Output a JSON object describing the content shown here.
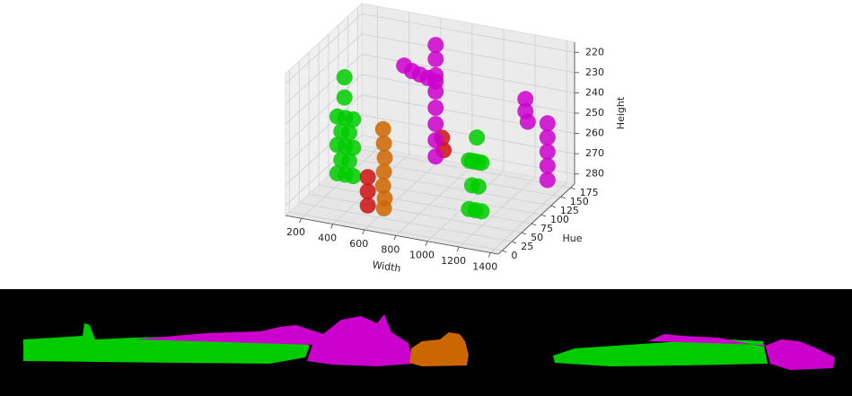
{
  "chart_data": {
    "type": "scatter3d",
    "xlabel": "Width",
    "ylabel": "Hue",
    "zlabel": "Height",
    "xlim": [
      100,
      1450
    ],
    "ylim": [
      -10,
      185
    ],
    "zlim": [
      285,
      215
    ],
    "xticks": [
      200,
      400,
      600,
      800,
      1000,
      1200,
      1400
    ],
    "yticks": [
      0,
      25,
      50,
      75,
      100,
      125,
      150,
      175
    ],
    "zticks": [
      220,
      230,
      240,
      250,
      260,
      270,
      280
    ],
    "grid": true,
    "series": [
      {
        "color": "#00cc00",
        "x": [
          330,
          330,
          330,
          355,
          355,
          380,
          380,
          380,
          405,
          405,
          430,
          430,
          430,
          375,
          375
        ],
        "y": [
          30,
          30,
          30,
          30,
          30,
          30,
          30,
          30,
          30,
          30,
          30,
          30,
          30,
          30,
          30
        ],
        "z": [
          240,
          254,
          268,
          247,
          261,
          240,
          254,
          268,
          247,
          261,
          240,
          254,
          268,
          220,
          230
        ]
      },
      {
        "color": "#cc6600",
        "x": [
          645,
          650,
          655,
          650,
          645,
          655,
          650
        ],
        "y": [
          20,
          20,
          20,
          20,
          20,
          20,
          20
        ],
        "z": [
          240,
          247,
          254,
          261,
          268,
          274,
          279
        ]
      },
      {
        "color": "#cc1111",
        "x": [
          560,
          560,
          560,
          820,
          830
        ],
        "y": [
          15,
          15,
          15,
          100,
          100
        ],
        "z": [
          264,
          271,
          278,
          256,
          262
        ]
      },
      {
        "color": "#cc00cc",
        "x": [
          730,
          730,
          730,
          730,
          730,
          730,
          730,
          730,
          530,
          580,
          630,
          680,
          730
        ],
        "y": [
          120,
          120,
          120,
          120,
          120,
          120,
          120,
          120,
          120,
          120,
          120,
          120,
          120
        ],
        "z": [
          215,
          222,
          230,
          238,
          246,
          254,
          262,
          270,
          228,
          230,
          231,
          232,
          233
        ]
      },
      {
        "color": "#00cc00",
        "x": [
          1140,
          1160,
          1180,
          1200,
          1220,
          1140,
          1180,
          1220,
          1160,
          1200,
          1190
        ],
        "y": [
          40,
          40,
          40,
          40,
          40,
          40,
          40,
          40,
          40,
          40,
          40
        ],
        "z": [
          252,
          252,
          252,
          252,
          252,
          276,
          276,
          276,
          264,
          264,
          240
        ]
      },
      {
        "color": "#cc00cc",
        "x": [
          1365,
          1365,
          1365,
          1365,
          1365,
          1225,
          1225,
          1240
        ],
        "y": [
          150,
          150,
          150,
          150,
          150,
          150,
          150,
          150
        ],
        "z": [
          250,
          257,
          264,
          271,
          278,
          240,
          246,
          251
        ]
      }
    ]
  }
}
